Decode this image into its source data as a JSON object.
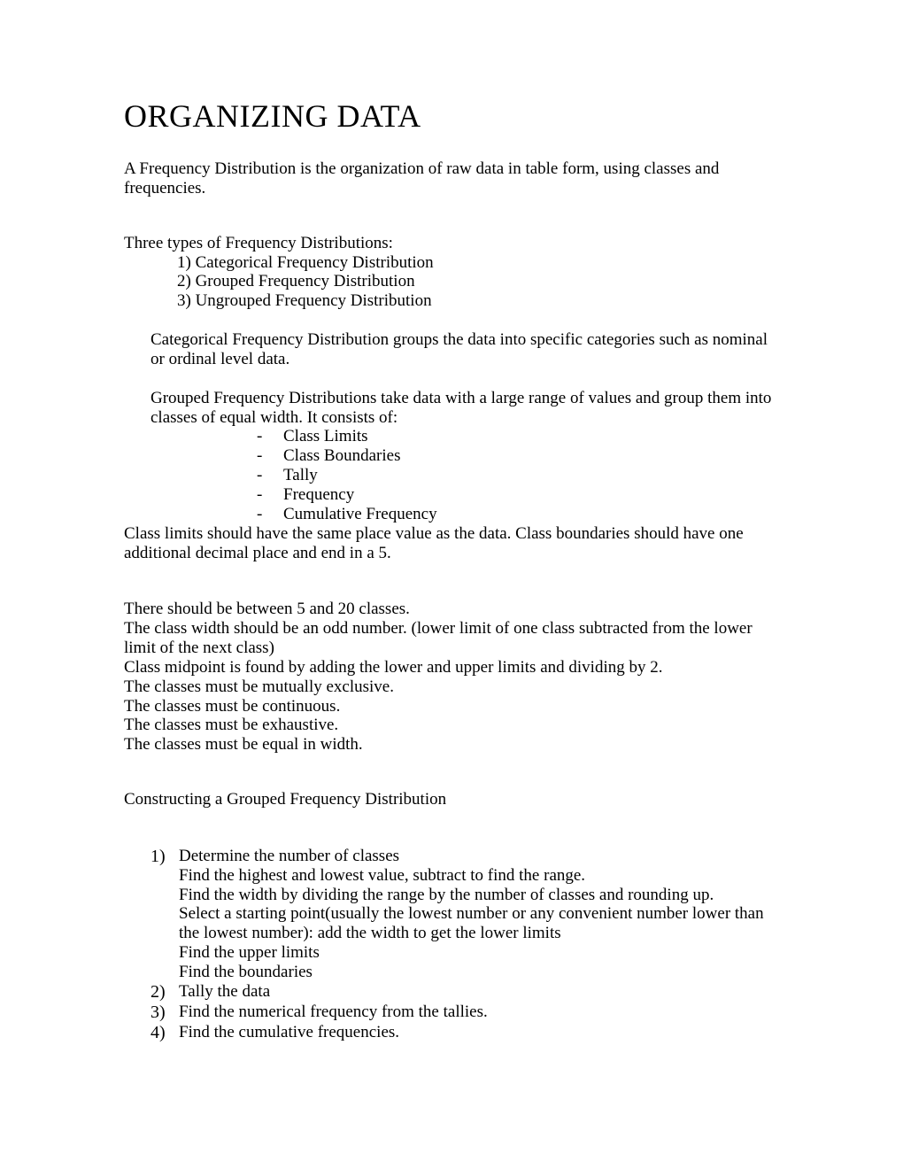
{
  "title": "ORGANIZING DATA",
  "intro": "A Frequency Distribution is the organization of raw data in table form, using classes and frequencies.",
  "types_label": "Three types of Frequency Distributions:",
  "types": {
    "item1": "1)   Categorical Frequency Distribution",
    "item2": "2)   Grouped Frequency Distribution",
    "item3": "3)   Ungrouped Frequency Distribution"
  },
  "categorical_desc": "Categorical Frequency Distribution groups the data into specific categories such as nominal or ordinal level data.",
  "grouped_desc": "Grouped Frequency Distributions take data with a large range of values and group them into classes of equal width.  It consists of:",
  "grouped_items": {
    "item1": "Class Limits",
    "item2": "Class Boundaries",
    "item3": "Tally",
    "item4": "Frequency",
    "item5": "Cumulative Frequency"
  },
  "class_limits_note": "Class limits should have the same place value as the data.  Class boundaries should have one additional decimal place and end in a 5.",
  "rules": {
    "r1": "There should be between 5 and 20 classes.",
    "r2": "The class width should be an odd number.  (lower limit of one class subtracted from the lower limit of the next class)",
    "r3": "Class midpoint is found by adding the lower and upper limits and dividing by 2.",
    "r4": "The classes must be mutually exclusive.",
    "r5": "The classes must be continuous.",
    "r6": "The classes must be exhaustive.",
    "r7": "The classes must be equal in width."
  },
  "constructing_title": "Constructing a Grouped Frequency Distribution",
  "steps": {
    "s1": {
      "num": "1)",
      "main": "Determine the number of classes",
      "sub1": "Find the highest and lowest value, subtract to find the range.",
      "sub2": "Find the width by dividing the range by the number of classes and rounding up.",
      "sub3": "Select a starting point(usually the lowest number or any convenient number lower than the lowest number):  add the width to get the lower limits",
      "sub4": "Find the upper limits",
      "sub5": "Find the boundaries"
    },
    "s2": {
      "num": "2)",
      "main": "Tally the data"
    },
    "s3": {
      "num": "3)",
      "main": "Find the numerical frequency from the tallies."
    },
    "s4": {
      "num": "4)",
      "main": "Find the cumulative frequencies."
    }
  },
  "dash_marker": "-"
}
